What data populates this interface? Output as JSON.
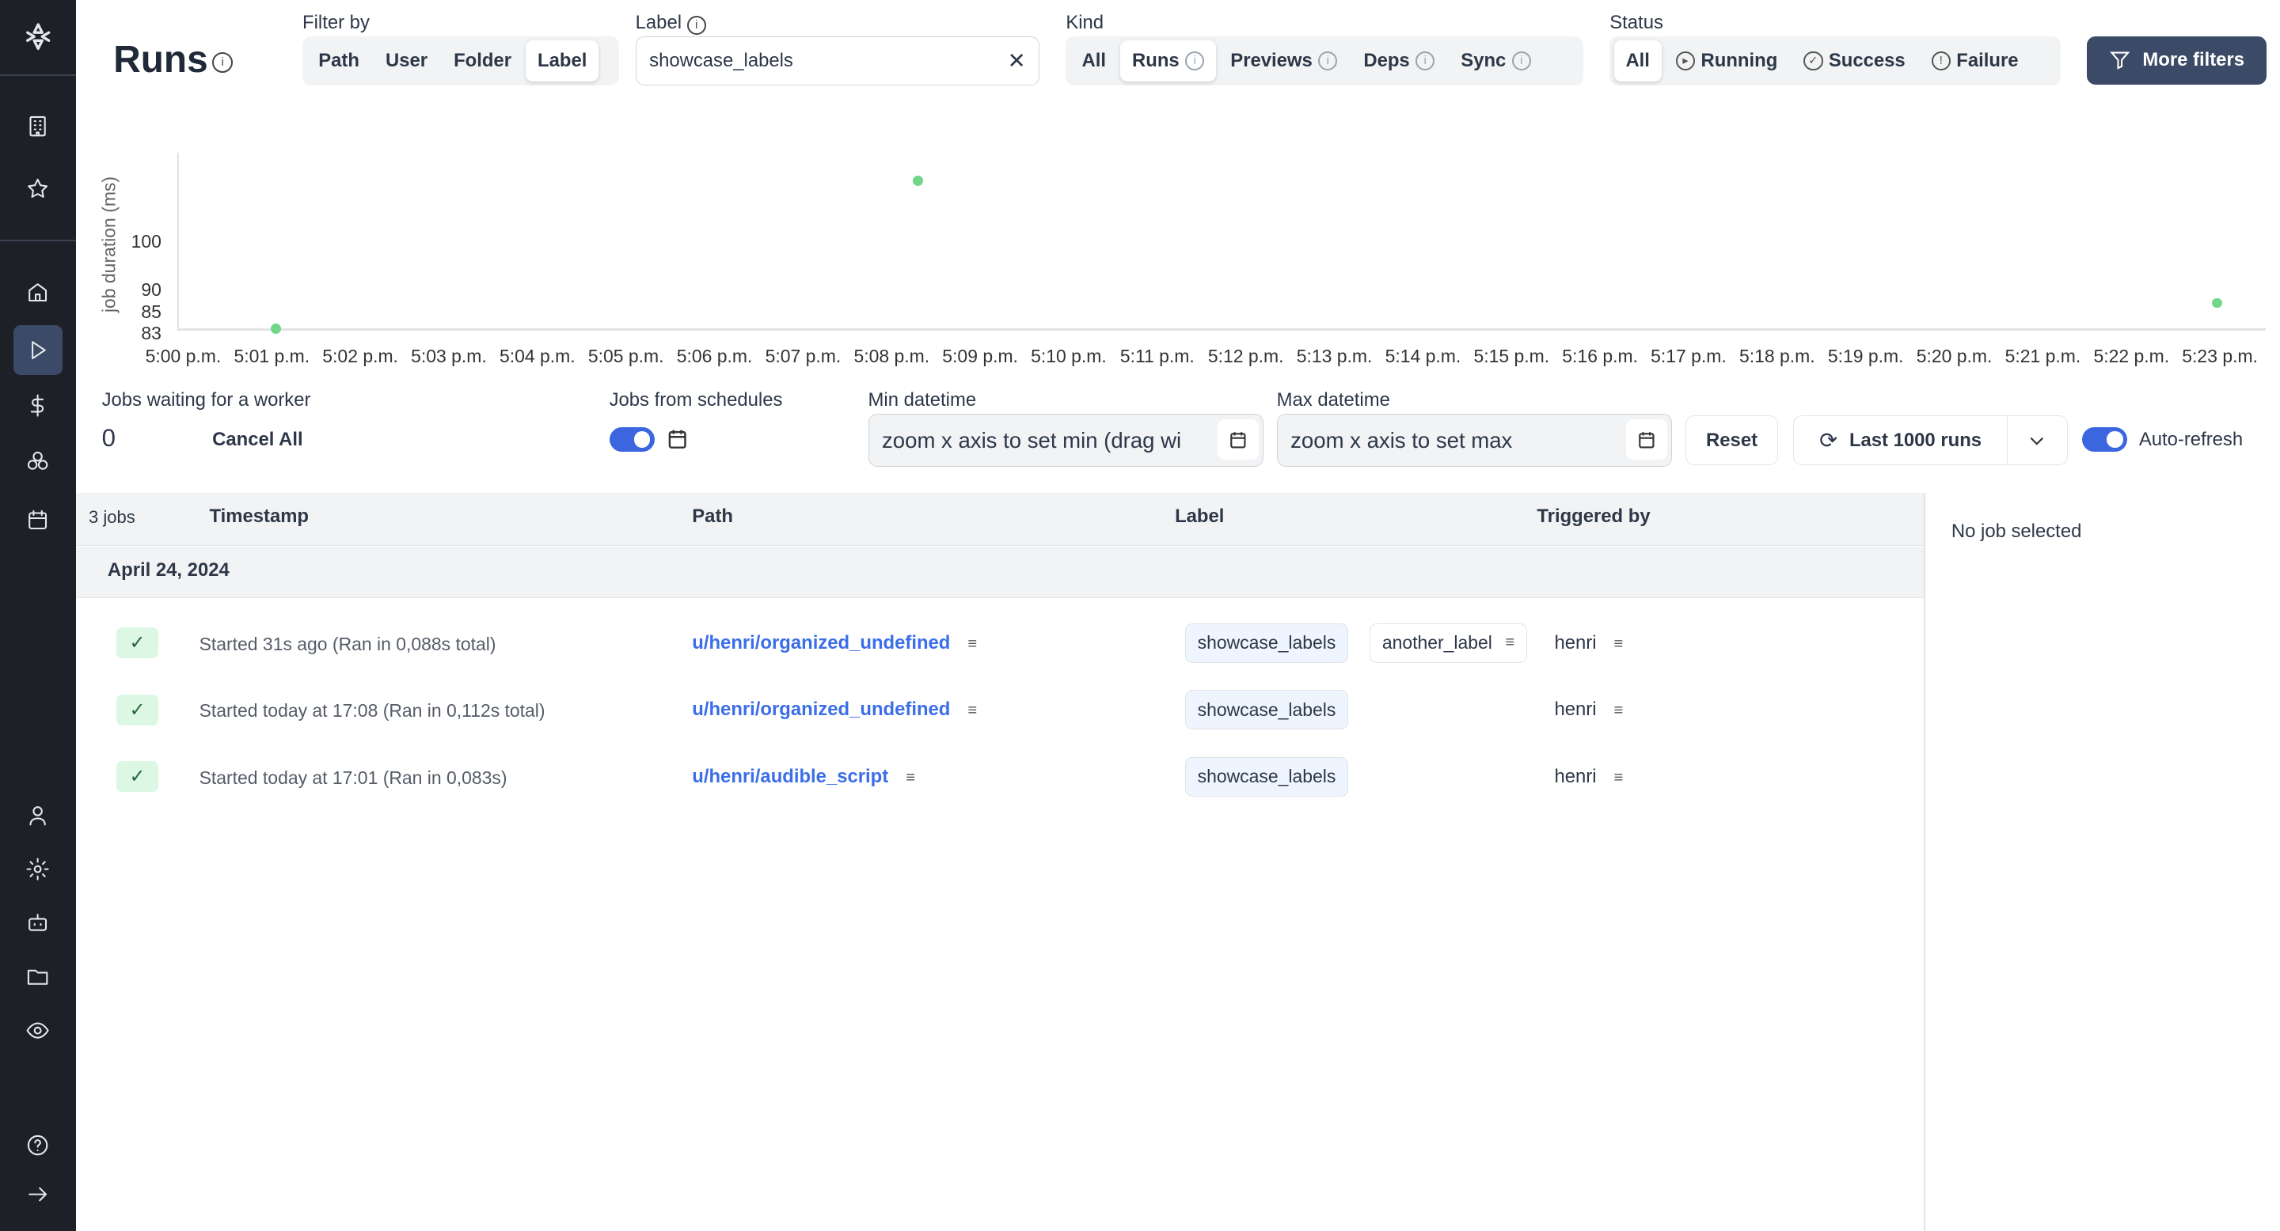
{
  "sidebar": {
    "top": [
      "logo",
      "workspace-icon",
      "star-icon"
    ],
    "main": [
      "home-icon",
      "runs-icon",
      "dollar-icon",
      "resources-icon",
      "calendar-icon"
    ],
    "bottom": [
      "user-icon",
      "gear-icon",
      "robot-icon",
      "folder-icon",
      "eye-icon",
      "help-icon",
      "arrow-right-icon"
    ],
    "active": "runs"
  },
  "header": {
    "title": "Runs",
    "filter_by": {
      "label": "Filter by",
      "options": [
        "Path",
        "User",
        "Folder",
        "Label"
      ],
      "selected": "Label"
    },
    "label_filter": {
      "label": "Label",
      "value": "showcase_labels"
    },
    "kind": {
      "label": "Kind",
      "options": [
        "All",
        "Runs",
        "Previews",
        "Deps",
        "Sync"
      ],
      "selected": "Runs"
    },
    "status": {
      "label": "Status",
      "options": [
        "All",
        "Running",
        "Success",
        "Failure"
      ],
      "selected": "All"
    },
    "more_filters": "More filters"
  },
  "colors": {
    "accent": "#3b66e0",
    "point": "#6fd68a",
    "more_filters_bg": "#3b4a66",
    "link": "#3b6ee8"
  },
  "chart_data": {
    "type": "scatter",
    "ylabel": "job duration (ms)",
    "yticks": [
      83,
      85,
      90,
      100
    ],
    "xticks": [
      "5:00 p.m.",
      "5:01 p.m.",
      "5:02 p.m.",
      "5:03 p.m.",
      "5:04 p.m.",
      "5:05 p.m.",
      "5:06 p.m.",
      "5:07 p.m.",
      "5:08 p.m.",
      "5:09 p.m.",
      "5:10 p.m.",
      "5:11 p.m.",
      "5:12 p.m.",
      "5:13 p.m.",
      "5:14 p.m.",
      "5:15 p.m.",
      "5:16 p.m.",
      "5:17 p.m.",
      "5:18 p.m.",
      "5:19 p.m.",
      "5:20 p.m.",
      "5:21 p.m.",
      "5:22 p.m.",
      "5:23 p.m."
    ],
    "xlim": [
      "17:00",
      "17:23"
    ],
    "grid": false,
    "points": [
      {
        "x": "17:01:03",
        "y": 83
      },
      {
        "x": "17:08:18",
        "y": 112
      },
      {
        "x": "17:22:58",
        "y": 88
      }
    ]
  },
  "controls": {
    "waiting_label": "Jobs waiting for a worker",
    "waiting_count": "0",
    "cancel_all": "Cancel All",
    "schedules_label": "Jobs from schedules",
    "schedules_on": true,
    "min_label": "Min datetime",
    "min_placeholder": "zoom x axis to set min (drag wi",
    "max_label": "Max datetime",
    "max_placeholder": "zoom x axis to set max",
    "reset": "Reset",
    "last_runs": "Last 1000 runs",
    "auto_refresh": "Auto-refresh",
    "auto_refresh_on": true
  },
  "table": {
    "count": "3 jobs",
    "headers": [
      "Timestamp",
      "Path",
      "Label",
      "Triggered by"
    ],
    "group": "April 24, 2024",
    "rows": [
      {
        "timestamp": "Started 31s ago (Ran in 0,088s total)",
        "path": "u/henri/organized_undefined",
        "labels": [
          "showcase_labels",
          "another_label"
        ],
        "triggered_by": "henri"
      },
      {
        "timestamp": "Started today at 17:08 (Ran in 0,112s total)",
        "path": "u/henri/organized_undefined",
        "labels": [
          "showcase_labels"
        ],
        "triggered_by": "henri"
      },
      {
        "timestamp": "Started today at 17:01 (Ran in 0,083s)",
        "path": "u/henri/audible_script",
        "labels": [
          "showcase_labels"
        ],
        "triggered_by": "henri"
      }
    ]
  },
  "detail": {
    "empty": "No job selected"
  }
}
